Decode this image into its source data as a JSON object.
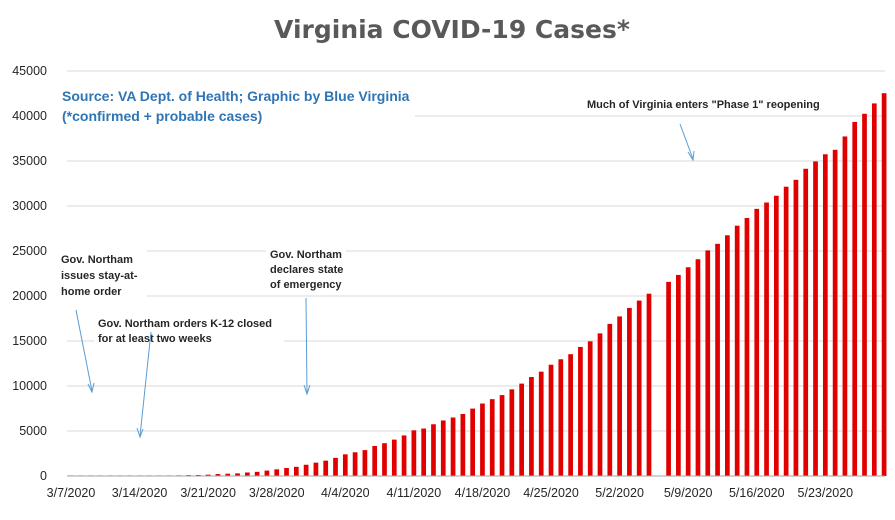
{
  "chart_data": {
    "type": "bar",
    "title": "Virginia COVID-19 Cases*",
    "source_line1": "Source: VA Dept. of Health; Graphic by Blue Virginia",
    "source_line2": "(*confirmed + probable cases)",
    "xlabel": "",
    "ylabel": "",
    "ylim": [
      0,
      45000
    ],
    "y_ticks": [
      "0",
      "5000",
      "10000",
      "15000",
      "20000",
      "25000",
      "30000",
      "35000",
      "40000",
      "45000"
    ],
    "x_tick_labels": [
      "3/7/2020",
      "3/14/2020",
      "3/21/2020",
      "3/28/2020",
      "4/4/2020",
      "4/11/2020",
      "4/18/2020",
      "4/25/2020",
      "5/2/2020",
      "5/9/2020",
      "5/16/2020",
      "5/23/2020"
    ],
    "grid": "horizontal",
    "bar_color": "#e00000",
    "dates": [
      "3/7/2020",
      "3/8/2020",
      "3/9/2020",
      "3/10/2020",
      "3/11/2020",
      "3/12/2020",
      "3/13/2020",
      "3/14/2020",
      "3/15/2020",
      "3/16/2020",
      "3/17/2020",
      "3/18/2020",
      "3/19/2020",
      "3/20/2020",
      "3/21/2020",
      "3/22/2020",
      "3/23/2020",
      "3/24/2020",
      "3/25/2020",
      "3/26/2020",
      "3/27/2020",
      "3/28/2020",
      "3/29/2020",
      "3/30/2020",
      "3/31/2020",
      "4/1/2020",
      "4/2/2020",
      "4/3/2020",
      "4/4/2020",
      "4/5/2020",
      "4/6/2020",
      "4/7/2020",
      "4/8/2020",
      "4/9/2020",
      "4/10/2020",
      "4/11/2020",
      "4/12/2020",
      "4/13/2020",
      "4/14/2020",
      "4/15/2020",
      "4/16/2020",
      "4/17/2020",
      "4/18/2020",
      "4/19/2020",
      "4/20/2020",
      "4/21/2020",
      "4/22/2020",
      "4/23/2020",
      "4/24/2020",
      "4/25/2020",
      "4/26/2020",
      "4/27/2020",
      "4/28/2020",
      "4/29/2020",
      "4/30/2020",
      "5/1/2020",
      "5/2/2020",
      "5/3/2020",
      "5/4/2020",
      "5/5/2020",
      "5/6/2020",
      "5/7/2020",
      "5/8/2020",
      "5/9/2020",
      "5/10/2020",
      "5/11/2020",
      "5/12/2020",
      "5/13/2020",
      "5/14/2020",
      "5/15/2020",
      "5/16/2020",
      "5/17/2020",
      "5/18/2020",
      "5/19/2020",
      "5/20/2020",
      "5/21/2020",
      "5/22/2020",
      "5/23/2020",
      "5/24/2020",
      "5/25/2020",
      "5/26/2020",
      "5/27/2020",
      "5/28/2020",
      "5/29/2020"
    ],
    "values": [
      2,
      3,
      3,
      5,
      9,
      17,
      30,
      45,
      49,
      51,
      67,
      77,
      99,
      114,
      152,
      219,
      254,
      290,
      391,
      460,
      604,
      739,
      890,
      1020,
      1250,
      1484,
      1706,
      2012,
      2407,
      2637,
      2878,
      3333,
      3645,
      4042,
      4509,
      5077,
      5274,
      5747,
      6171,
      6500,
      6889,
      7491,
      8053,
      8537,
      8990,
      9630,
      10266,
      10998,
      11594,
      12366,
      12970,
      13535,
      14339,
      14961,
      15846,
      16901,
      17731,
      18671,
      19492,
      20256,
      null,
      21570,
      22342,
      23196,
      24081,
      25070,
      25800,
      26746,
      27813,
      28672,
      29683,
      30388,
      31140,
      32145,
      32908,
      34137,
      34950,
      35749,
      36244,
      37727,
      39342,
      40249,
      41401,
      42533
    ]
  },
  "annotations": [
    {
      "lines": [
        "Gov. Northam",
        "issues stay-at-",
        "home order"
      ]
    },
    {
      "lines": [
        "Gov. Northam orders K-12 closed",
        "for at least two weeks"
      ]
    },
    {
      "lines": [
        "Gov. Northam",
        "declares state",
        "of emergency"
      ]
    },
    {
      "lines": [
        "Much of Virginia enters \"Phase 1\" reopening"
      ]
    }
  ]
}
